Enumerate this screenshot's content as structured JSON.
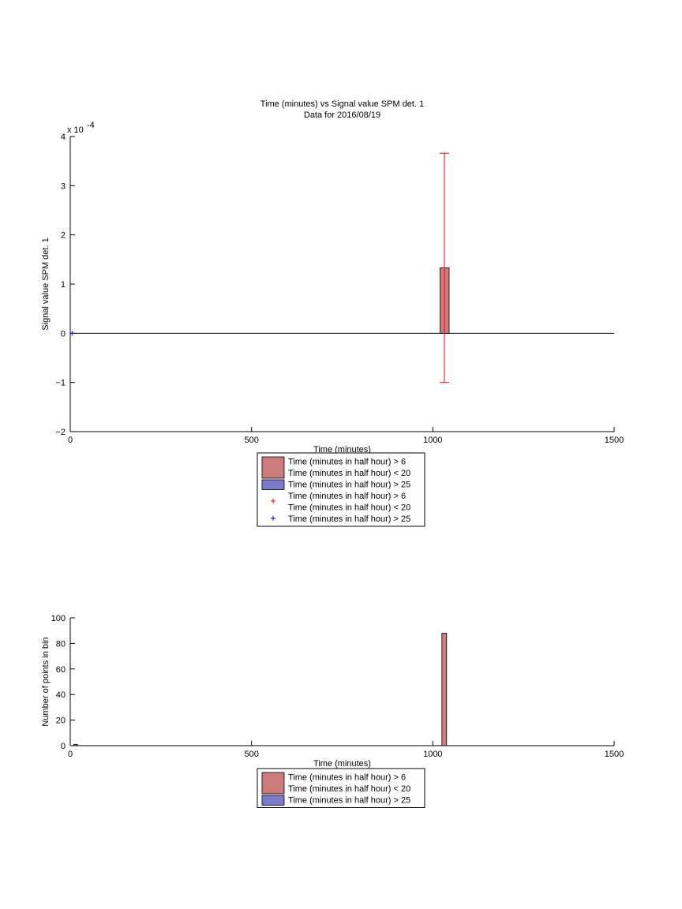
{
  "chart_data": [
    {
      "type": "bar",
      "title": "Time (minutes) vs Signal value SPM det. 1",
      "subtitle": "Data for 2016/08/19",
      "xlabel": "Time (minutes)",
      "ylabel": "Signal value SPM det. 1",
      "y_exponent_label": "x 10",
      "y_exponent_power": "-4",
      "xlim": [
        0,
        1500
      ],
      "ylim": [
        -2,
        4
      ],
      "x_ticks": [
        0,
        500,
        1000,
        1500
      ],
      "y_ticks": [
        -2,
        -1,
        0,
        1,
        2,
        3,
        4
      ],
      "grid": false,
      "legend_position": "below-axes",
      "series": [
        {
          "name": "Time (minutes in half hour) > 6\nTime (minutes in half hour) < 20",
          "kind": "bar",
          "color": "#cd7b7b",
          "bars": [
            {
              "x0": 1020,
              "x1": 1045,
              "value": 1.33
            }
          ]
        },
        {
          "name": "Time (minutes in half hour) > 25",
          "kind": "bar",
          "color": "#7b7bcd",
          "bars": []
        },
        {
          "name": "Time (minutes in half hour) > 6\nTime (minutes in half hour) < 20",
          "kind": "errorbar",
          "color": "#ff0000",
          "points": [
            {
              "x": 1032,
              "y": 1.33,
              "low": -1.0,
              "high": 3.66
            }
          ]
        },
        {
          "name": "Time (minutes in half hour) > 25",
          "kind": "marker",
          "marker": "+",
          "color": "#0000ff",
          "points": [
            {
              "x": 5,
              "y": 0
            }
          ]
        }
      ]
    },
    {
      "type": "bar",
      "title": "",
      "xlabel": "Time (minutes)",
      "ylabel": "Number of points in bin",
      "xlim": [
        0,
        1500
      ],
      "ylim": [
        0,
        100
      ],
      "x_ticks": [
        0,
        500,
        1000,
        1500
      ],
      "y_ticks": [
        0,
        20,
        40,
        60,
        80,
        100
      ],
      "grid": false,
      "legend_position": "below-axes",
      "series": [
        {
          "name": "Time (minutes in half hour) > 6\nTime (minutes in half hour) < 20",
          "color": "#cd7b7b",
          "bars": [
            {
              "x0": 1025,
              "x1": 1038,
              "value": 88
            }
          ]
        },
        {
          "name": "Time (minutes in half hour) > 25",
          "color": "#7b7bcd",
          "bars": [
            {
              "x0": 10,
              "x1": 20,
              "value": 1
            }
          ]
        }
      ]
    }
  ]
}
